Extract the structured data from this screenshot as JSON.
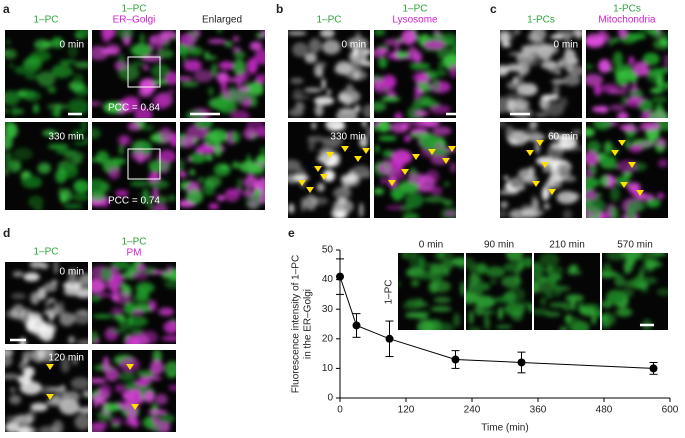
{
  "panels": {
    "a": {
      "label": "a",
      "col1": "1–PC",
      "col2": [
        "1–PC",
        "ER–Golgi"
      ],
      "col3": "Enlarged",
      "times": [
        "0 min",
        "330 min"
      ],
      "pcc": [
        "PCC = 0.84",
        "PCC = 0.74"
      ]
    },
    "b": {
      "label": "b",
      "col1": "1–PC",
      "col2": [
        "1–PC",
        "Lysosome"
      ],
      "times": [
        "0 min",
        "330 min"
      ]
    },
    "c": {
      "label": "c",
      "col1": "1-PCs",
      "col2": [
        "1-PCs",
        "Mitochondria"
      ],
      "times": [
        "0 min",
        "60 min"
      ]
    },
    "d": {
      "label": "d",
      "col1": "1–PC",
      "col2": [
        "1–PC",
        "PM"
      ],
      "times": [
        "0 min",
        "120 min"
      ]
    }
  },
  "chart_data": {
    "type": "line",
    "label": "e",
    "y_label": [
      "Fluorescence intensity of 1–PC",
      "in the ER–Golgi"
    ],
    "x_label": "Time (min)",
    "x": [
      0,
      30,
      90,
      210,
      330,
      570
    ],
    "values": [
      41,
      24.5,
      20,
      13,
      12,
      10
    ],
    "errors": [
      6,
      4,
      6,
      3,
      3.5,
      2
    ],
    "color": "#000000",
    "xlim": [
      0,
      600
    ],
    "xticks": [
      0,
      120,
      240,
      360,
      480,
      600
    ],
    "ylim": [
      0,
      50
    ],
    "yticks": [
      0,
      10,
      20,
      30,
      40,
      50
    ],
    "inset": {
      "label": "1–PC",
      "times": [
        "0 min",
        "90 min",
        "210 min",
        "570 min"
      ]
    }
  }
}
